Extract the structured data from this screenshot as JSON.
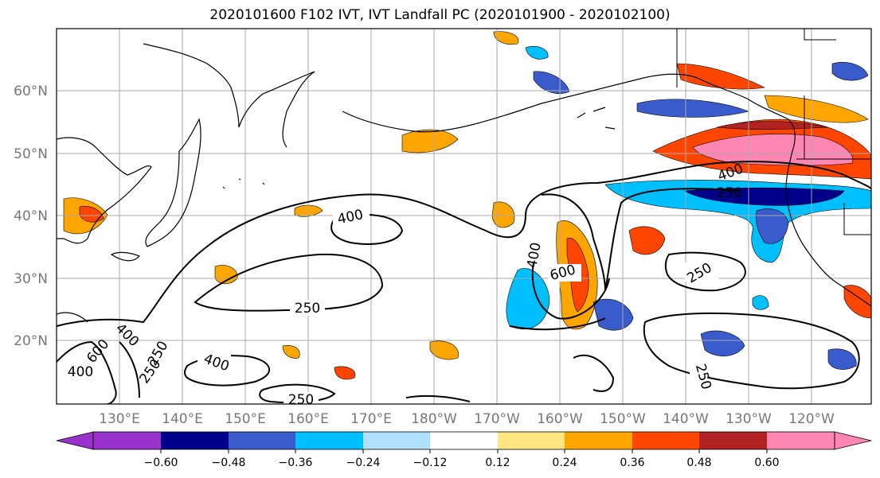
{
  "title": "2020101600 F102 IVT, IVT Landfall PC (2020101900 - 2020102100)",
  "lat_labels": [
    "60°N",
    "50°N",
    "40°N",
    "30°N",
    "20°N"
  ],
  "lon_labels": [
    "130°E",
    "140°E",
    "150°E",
    "160°E",
    "170°E",
    "180°W",
    "170°W",
    "160°W",
    "150°W",
    "140°W",
    "130°W",
    "120°W"
  ],
  "contour_labels": {
    "c400_a": "400",
    "c250_a": "250",
    "c400_b": "400",
    "c600_a": "600",
    "c250_b": "250",
    "c400_c": "400",
    "c250_c": "250",
    "c250_d": "250",
    "c400_d": "400",
    "c600_b": "600",
    "c400_e": "400",
    "c250_e": "250",
    "c250_f": "250",
    "c250_g": "250"
  },
  "colorbar": {
    "colors": [
      "#9932cc",
      "#00008b",
      "#3a5bcc",
      "#00bfff",
      "#b0e0ff",
      "#ffffff",
      "#ffffff",
      "#ffe680",
      "#ffa500",
      "#ff4500",
      "#b22222",
      "#ff85b3"
    ],
    "tick_labels": [
      "−0.60",
      "−0.48",
      "−0.36",
      "−0.24",
      "−0.12",
      "0.12",
      "0.24",
      "0.36",
      "0.48",
      "0.60"
    ]
  },
  "field_colors": {
    "orange": "#ffa500",
    "red_orange": "#ff4500",
    "dark_red": "#b22222",
    "pink": "#ff85b3",
    "light_yellow": "#ffe680",
    "light_blue": "#b0e0ff",
    "sky_blue": "#00bfff",
    "royal_blue": "#3a5bcc",
    "navy": "#00008b"
  }
}
